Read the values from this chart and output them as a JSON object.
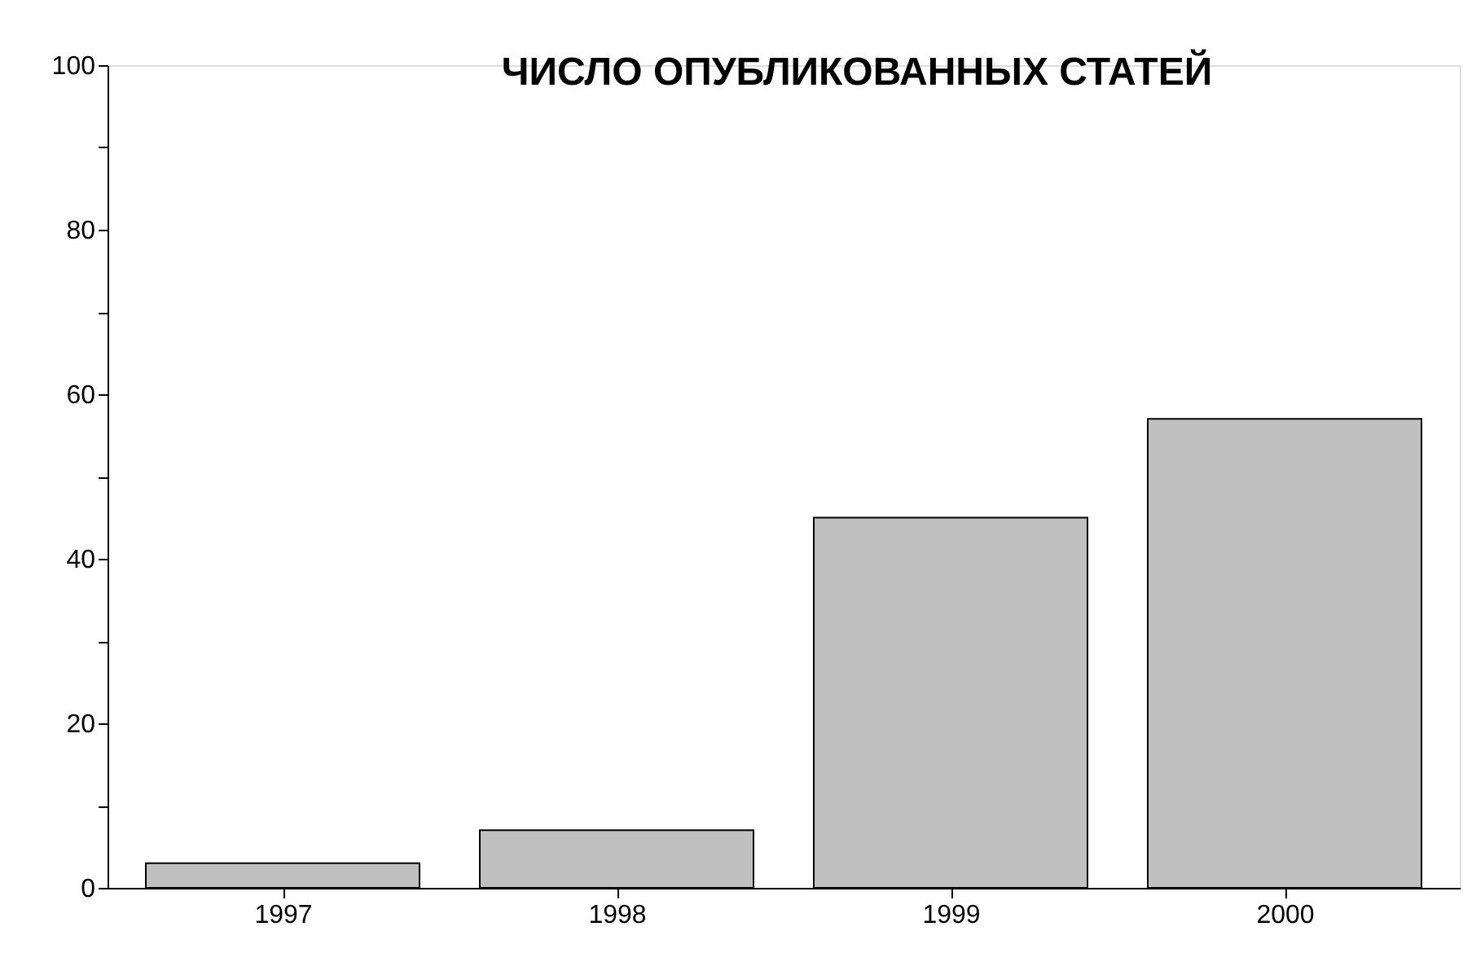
{
  "chart_data": {
    "type": "bar",
    "title": "ЧИСЛО ОПУБЛИКОВАННЫХ СТАТЕЙ",
    "categories": [
      "1997",
      "1998",
      "1999",
      "2000"
    ],
    "values": [
      3,
      7,
      45,
      57
    ],
    "color": "#c0c0c0",
    "ylim": [
      0,
      100
    ],
    "yticks": [
      0,
      {
        "value": 10,
        "label": null
      },
      20,
      {
        "value": 30,
        "label": null
      },
      40,
      {
        "value": 50,
        "label": null
      },
      60,
      {
        "value": 70,
        "label": null
      },
      80,
      {
        "value": 90,
        "label": null
      },
      100
    ],
    "grid": false
  }
}
